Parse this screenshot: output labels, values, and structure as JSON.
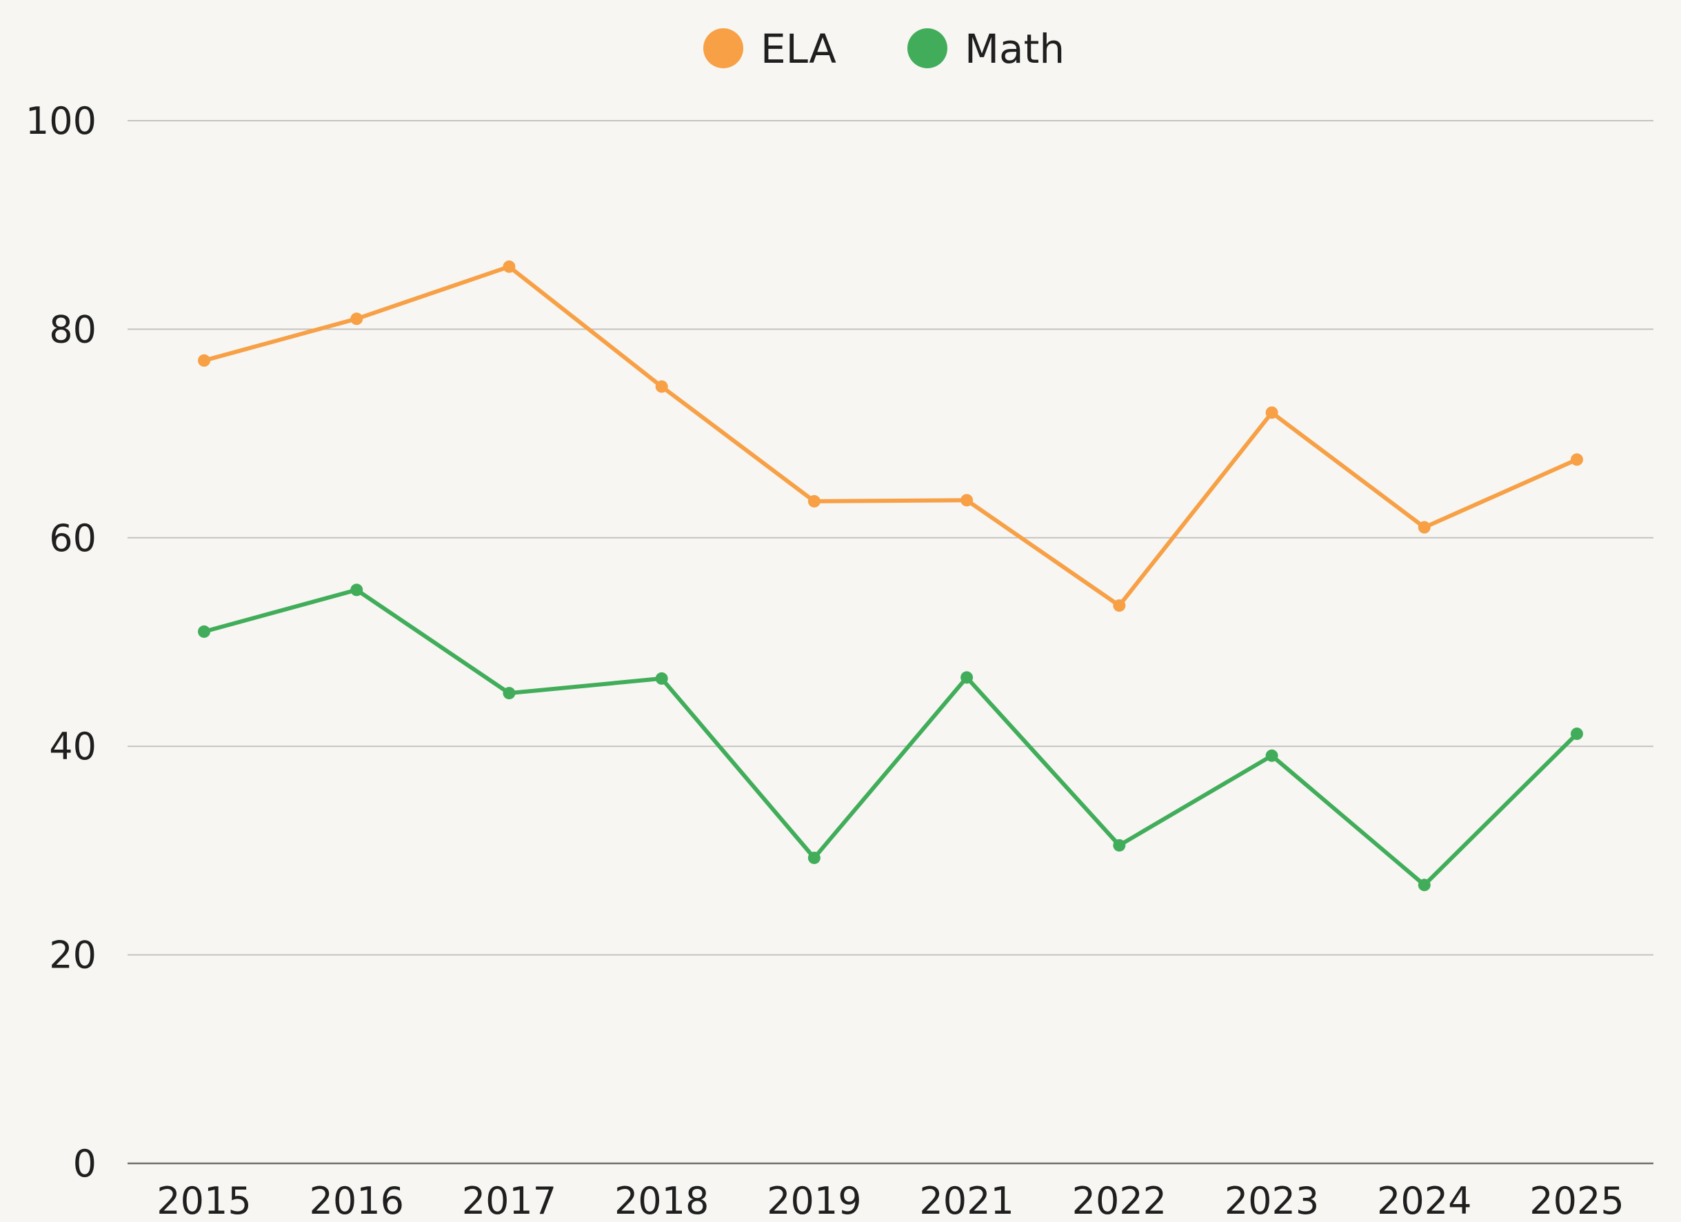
{
  "chart_data": {
    "type": "line",
    "title": "",
    "xlabel": "",
    "ylabel": "",
    "categories": [
      "2015",
      "2016",
      "2017",
      "2018",
      "2019",
      "2021",
      "2022",
      "2023",
      "2024",
      "2025"
    ],
    "ylim": [
      0,
      100
    ],
    "yticks": [
      0,
      20,
      40,
      60,
      80,
      100
    ],
    "grid": true,
    "legend_position": "top-center",
    "series": [
      {
        "name": "ELA",
        "color": "#f7a046",
        "values": [
          77,
          81,
          86,
          74.5,
          63.5,
          63.6,
          53.5,
          72,
          61,
          67.5
        ]
      },
      {
        "name": "Math",
        "color": "#41ad5a",
        "values": [
          51,
          55,
          45.1,
          46.5,
          29.3,
          46.6,
          30.5,
          39.1,
          26.7,
          41.2
        ]
      }
    ]
  }
}
